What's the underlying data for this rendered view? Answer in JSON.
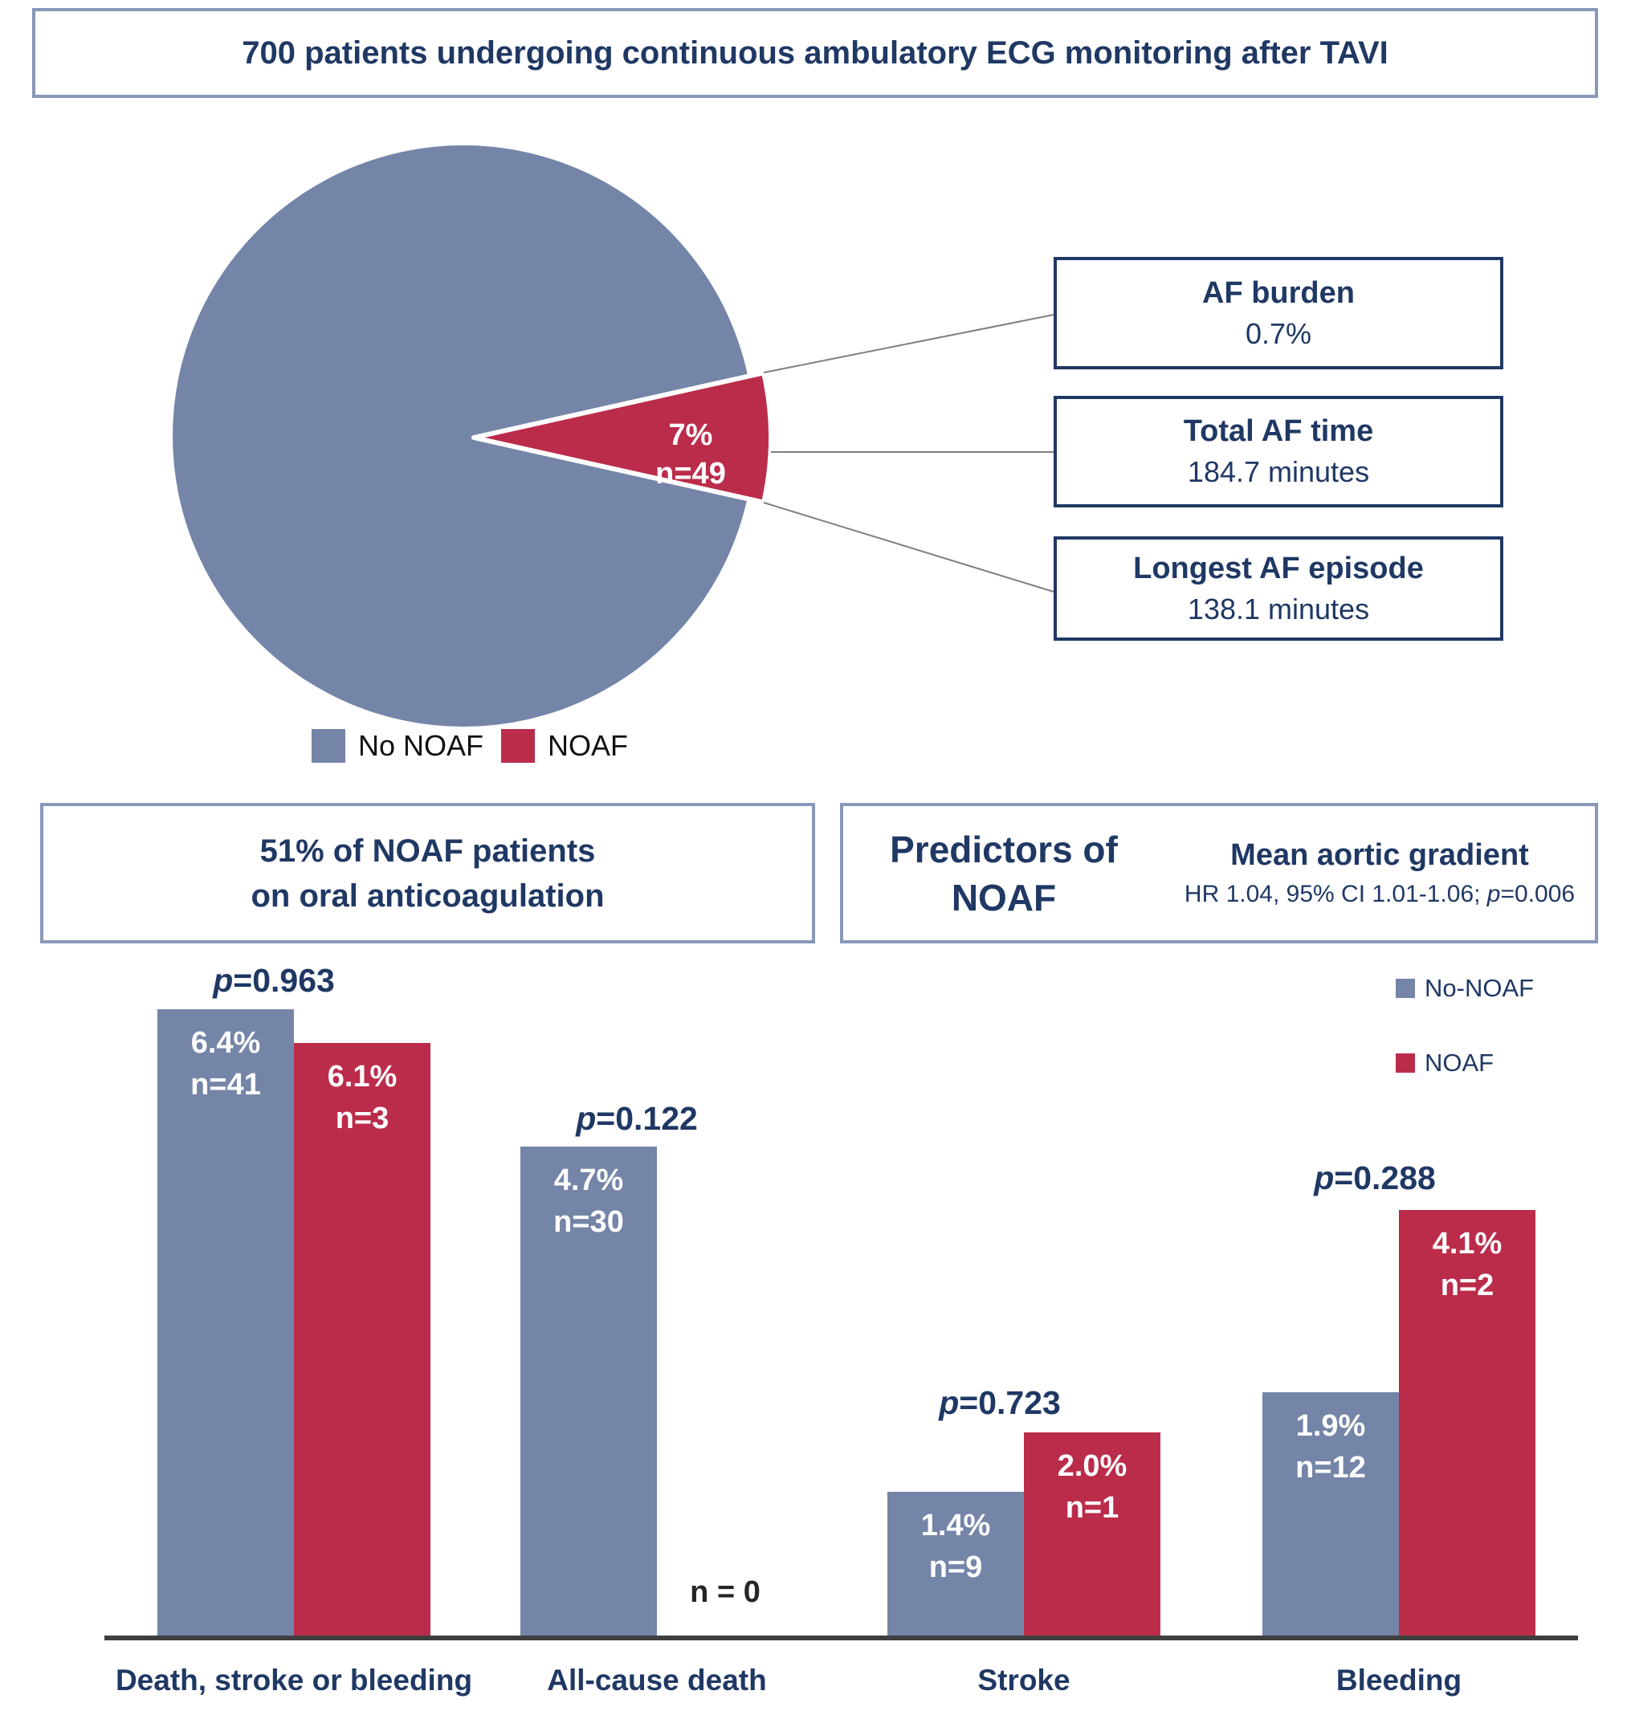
{
  "header": {
    "title": "700 patients undergoing continuous ambulatory ECG monitoring after TAVI"
  },
  "colors": {
    "no_noaf_blue": "#7585A8",
    "noaf_red": "#BB2C4B",
    "navy_text": "#1F3864",
    "box_border_gray_blue": "#8898BA",
    "callout_border_navy": "#203864",
    "axis_dark": "#3F3F3F"
  },
  "pie_section": {
    "slice_label": {
      "pct": "7%",
      "n": "n=49"
    },
    "legend": [
      {
        "label": "No NOAF"
      },
      {
        "label": "NOAF"
      }
    ],
    "callouts": [
      {
        "title": "AF burden",
        "value": "0.7%"
      },
      {
        "title": "Total AF time",
        "value": "184.7 minutes"
      },
      {
        "title": "Longest AF episode",
        "value": "138.1 minutes"
      }
    ]
  },
  "info_boxes": {
    "anticoagulation": {
      "line1": "51% of NOAF patients",
      "line2": "on oral anticoagulation"
    },
    "predictors": {
      "title_line1": "Predictors of",
      "title_line2": "NOAF",
      "predictor": "Mean aortic gradient",
      "stats_prefix": "HR 1.04, 95% CI 1.01-1.06; ",
      "stats_p": "p",
      "stats_p_value": "=0.006"
    }
  },
  "bar_chart": {
    "legend": [
      {
        "label": "No-NOAF"
      },
      {
        "label": "NOAF"
      }
    ],
    "zero_label": "n = 0"
  },
  "chart_data": [
    {
      "type": "pie",
      "title": "NOAF incidence after TAVI",
      "slices": [
        {
          "label": "No NOAF",
          "pct": 93
        },
        {
          "label": "NOAF",
          "pct": 7,
          "n": 49
        }
      ],
      "legend_position": "bottom"
    },
    {
      "type": "bar",
      "categories": [
        "Death, stroke or bleeding",
        "All-cause death",
        "Stroke",
        "Bleeding"
      ],
      "series": [
        {
          "name": "No-NOAF",
          "values": [
            6.4,
            4.7,
            1.4,
            1.9
          ],
          "counts": [
            41,
            30,
            9,
            12
          ],
          "color": "#7585A8"
        },
        {
          "name": "NOAF",
          "values": [
            6.1,
            0,
            2.0,
            4.1
          ],
          "counts": [
            3,
            0,
            1,
            2
          ],
          "color": "#BB2C4B"
        }
      ],
      "p_values": [
        "p=0.963",
        "p=0.122",
        "p=0.723",
        "p=0.288"
      ],
      "ylim": [
        0,
        7
      ],
      "grid": false,
      "legend_position": "right"
    }
  ]
}
